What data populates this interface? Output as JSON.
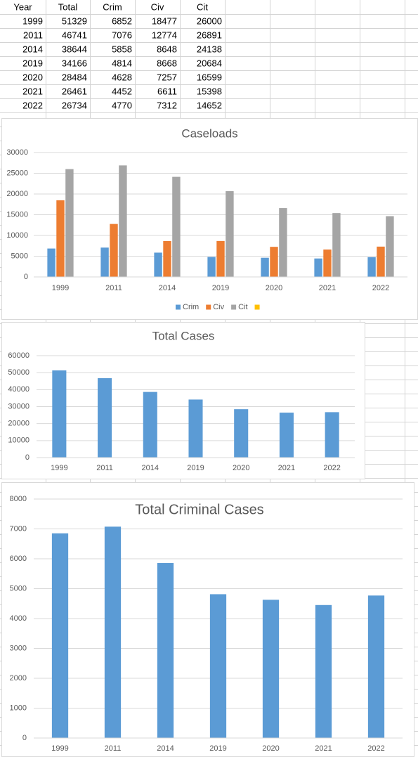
{
  "table": {
    "header": [
      "Year",
      "Total",
      "Crim",
      "Civ",
      "Cit"
    ],
    "rows": [
      [
        1999,
        51329,
        6852,
        18477,
        26000
      ],
      [
        2011,
        46741,
        7076,
        12774,
        26891
      ],
      [
        2014,
        38644,
        5858,
        8648,
        24138
      ],
      [
        2019,
        34166,
        4814,
        8668,
        20684
      ],
      [
        2020,
        28484,
        4628,
        7257,
        16599
      ],
      [
        2021,
        26461,
        4452,
        6611,
        15398
      ],
      [
        2022,
        26734,
        4770,
        7312,
        14652
      ]
    ]
  },
  "chart_data": [
    {
      "type": "bar",
      "title": "Caseloads",
      "categories": [
        "1999",
        "2011",
        "2014",
        "2019",
        "2020",
        "2021",
        "2022"
      ],
      "series": [
        {
          "name": "Crim",
          "color": "#5b9bd5",
          "values": [
            6852,
            7076,
            5858,
            4814,
            4628,
            4452,
            4770
          ]
        },
        {
          "name": "Civ",
          "color": "#ed7d31",
          "values": [
            18477,
            12774,
            8648,
            8668,
            7257,
            6611,
            7312
          ]
        },
        {
          "name": "Cit",
          "color": "#a5a5a5",
          "values": [
            26000,
            26891,
            24138,
            20684,
            16599,
            15398,
            14652
          ]
        }
      ],
      "ylim": [
        0,
        30000
      ],
      "yticks": [
        0,
        5000,
        10000,
        15000,
        20000,
        25000,
        30000
      ],
      "grid": true,
      "legend": "bottom"
    },
    {
      "type": "bar",
      "title": "Total Cases",
      "categories": [
        "1999",
        "2011",
        "2014",
        "2019",
        "2020",
        "2021",
        "2022"
      ],
      "values": [
        51329,
        46741,
        38644,
        34166,
        28484,
        26461,
        26734
      ],
      "color": "#5b9bd5",
      "ylim": [
        0,
        60000
      ],
      "yticks": [
        0,
        10000,
        20000,
        30000,
        40000,
        50000,
        60000
      ],
      "grid": true
    },
    {
      "type": "bar",
      "title": "Total Criminal Cases",
      "categories": [
        "1999",
        "2011",
        "2014",
        "2019",
        "2020",
        "2021",
        "2022"
      ],
      "values": [
        6852,
        7076,
        5858,
        4814,
        4628,
        4452,
        4770
      ],
      "color": "#5b9bd5",
      "ylim": [
        0,
        8000
      ],
      "yticks": [
        0,
        1000,
        2000,
        3000,
        4000,
        5000,
        6000,
        7000,
        8000
      ],
      "grid": true
    }
  ]
}
